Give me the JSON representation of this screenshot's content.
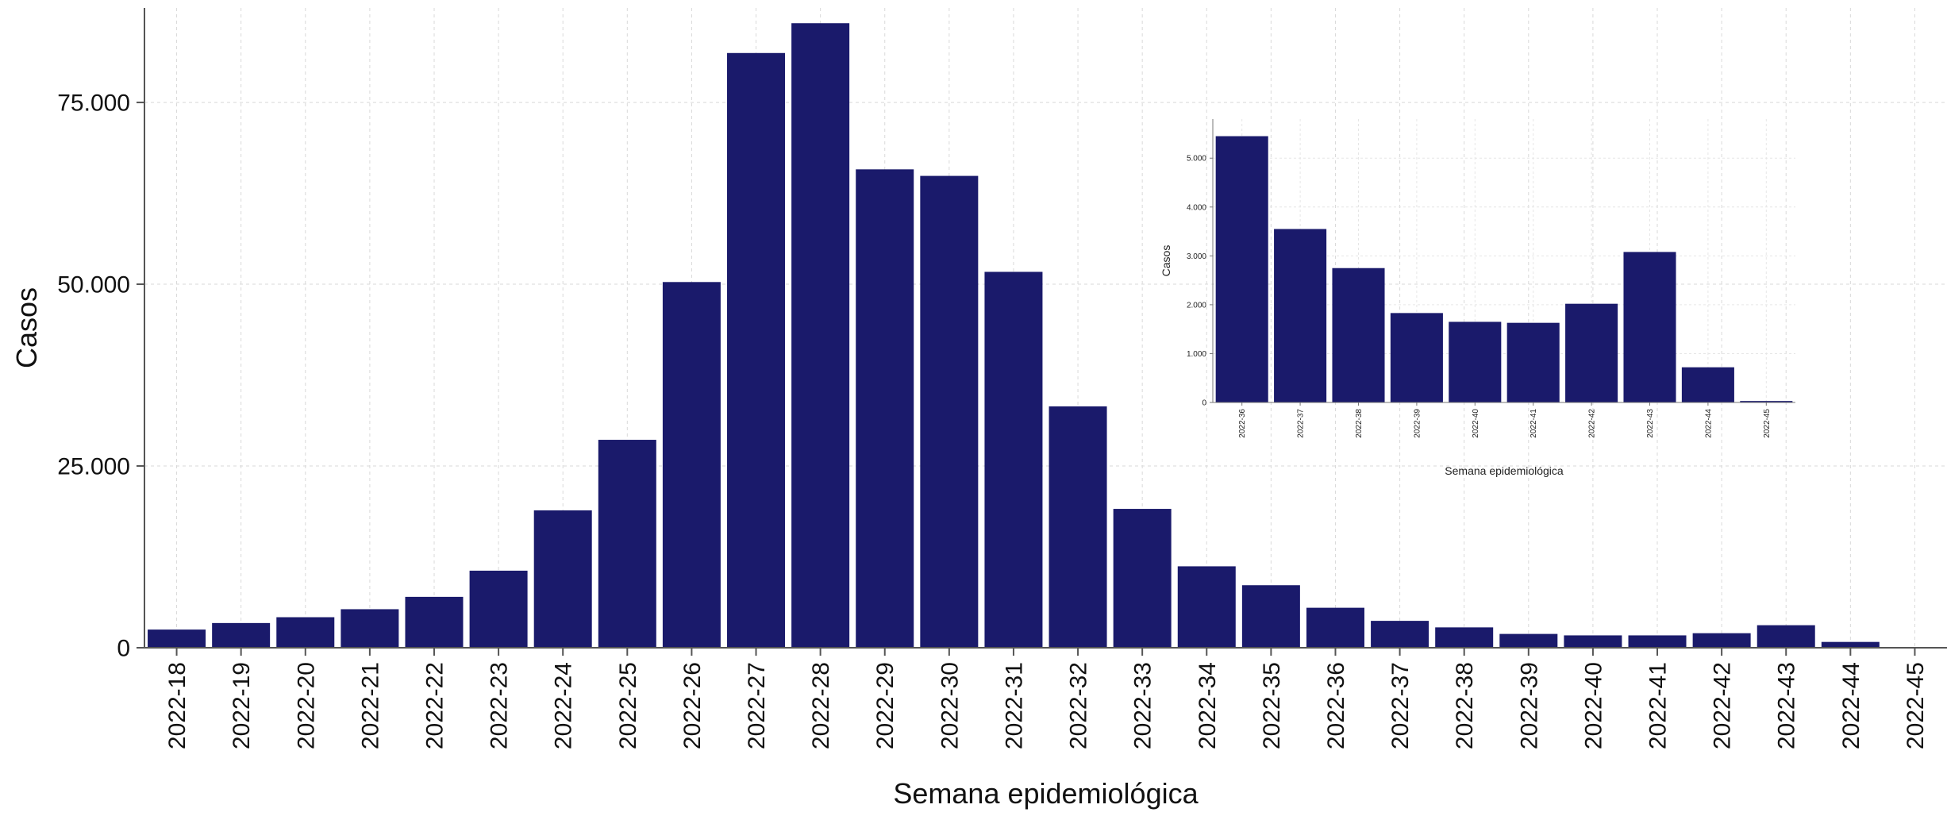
{
  "chart_data": [
    {
      "type": "bar",
      "xlabel": "Semana epidemiológica",
      "ylabel": "Casos",
      "ylim": [
        0,
        88000
      ],
      "yticks": [
        0,
        25000,
        50000,
        75000
      ],
      "ytick_labels": [
        "0",
        "25.000",
        "50.000",
        "75.000"
      ],
      "grid": true,
      "color": "#1a1a6b",
      "categories": [
        "2022-18",
        "2022-19",
        "2022-20",
        "2022-21",
        "2022-22",
        "2022-23",
        "2022-24",
        "2022-25",
        "2022-26",
        "2022-27",
        "2022-28",
        "2022-29",
        "2022-30",
        "2022-31",
        "2022-32",
        "2022-33",
        "2022-34",
        "2022-35",
        "2022-36",
        "2022-37",
        "2022-38",
        "2022-39",
        "2022-40",
        "2022-41",
        "2022-42",
        "2022-43",
        "2022-44",
        "2022-45"
      ],
      "values": [
        2500,
        3400,
        4200,
        5300,
        7000,
        10600,
        18900,
        28600,
        50300,
        81800,
        85900,
        65800,
        64900,
        51700,
        33200,
        19100,
        11200,
        8600,
        5500,
        3700,
        2800,
        1900,
        1700,
        1700,
        2000,
        3100,
        800,
        50
      ]
    },
    {
      "type": "bar",
      "inset": true,
      "xlabel": "Semana epidemiológica",
      "ylabel": "Casos",
      "ylim": [
        0,
        5800
      ],
      "yticks": [
        0,
        1000,
        2000,
        3000,
        4000,
        5000
      ],
      "ytick_labels": [
        "0",
        "1.000",
        "2.000",
        "3.000",
        "4.000",
        "5.000"
      ],
      "grid": true,
      "color": "#1a1a6b",
      "categories": [
        "2022-36",
        "2022-37",
        "2022-38",
        "2022-39",
        "2022-40",
        "2022-41",
        "2022-42",
        "2022-43",
        "2022-44",
        "2022-45"
      ],
      "values": [
        5450,
        3550,
        2750,
        1830,
        1650,
        1630,
        2020,
        3080,
        720,
        30
      ]
    }
  ]
}
